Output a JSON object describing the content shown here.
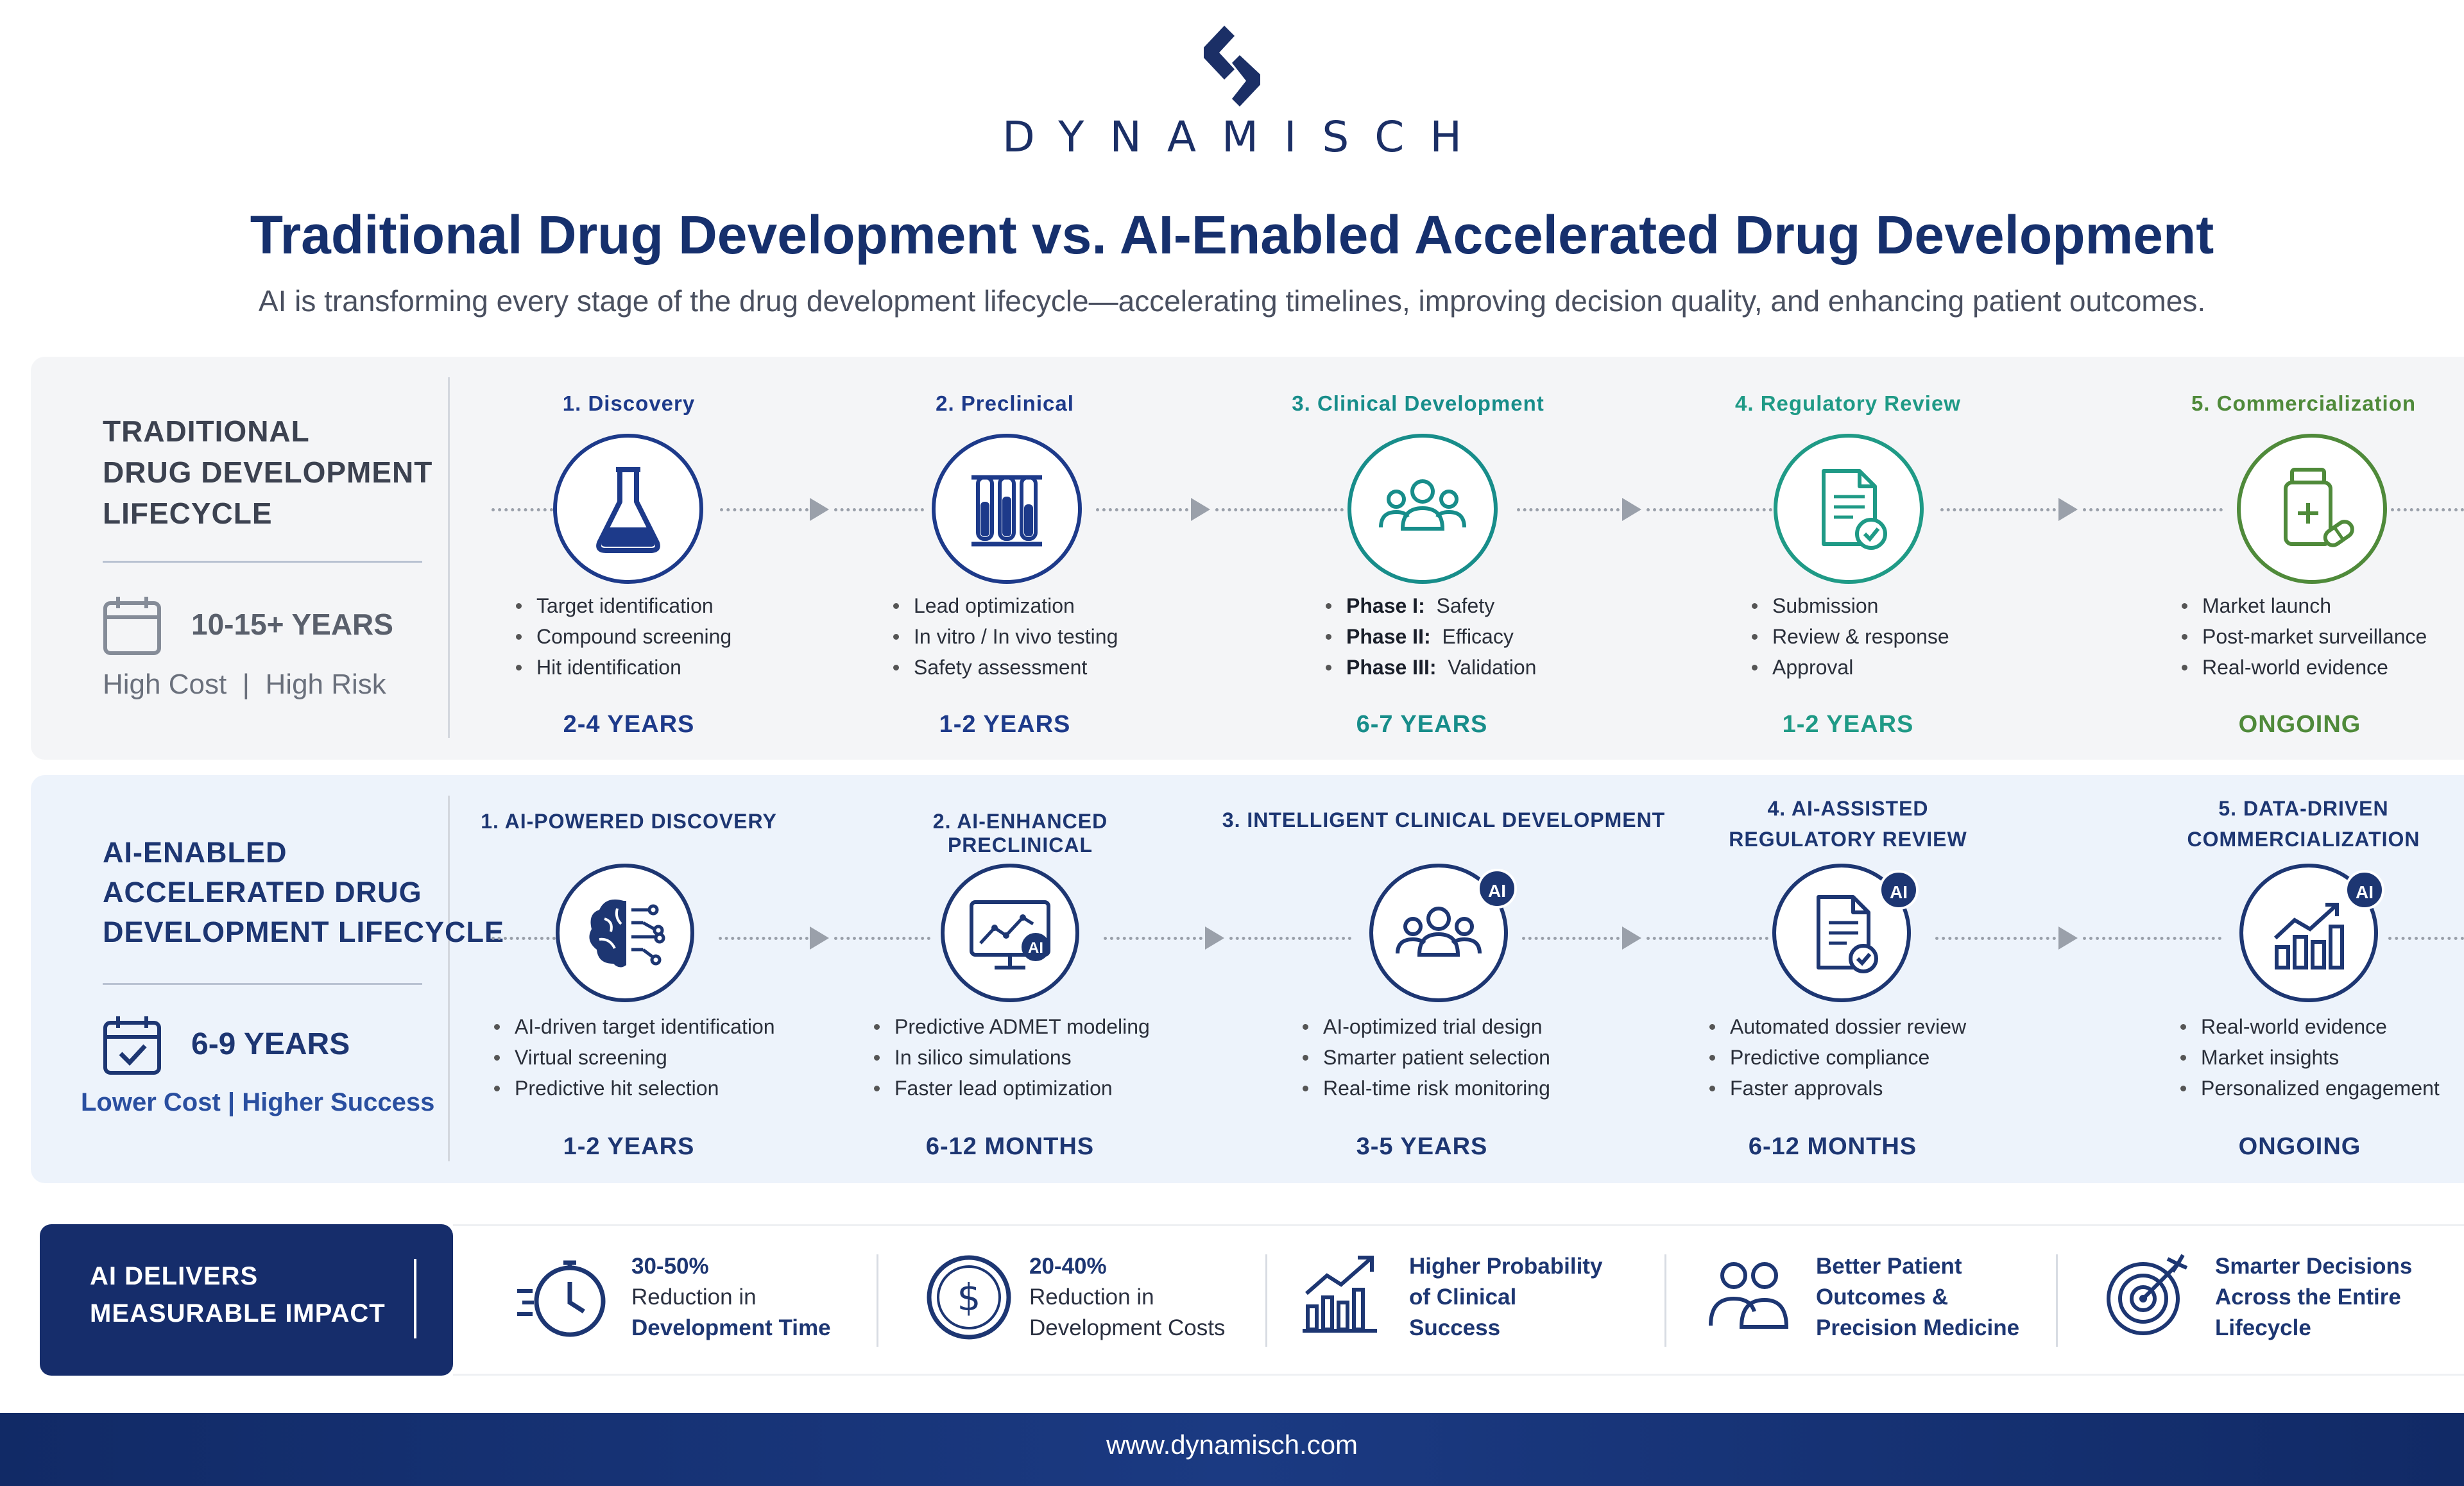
{
  "brand": {
    "name": "DYNAMISCH"
  },
  "header": {
    "title": "Traditional Drug Development vs. AI-Enabled Accelerated Drug Development",
    "subtitle": "AI is transforming every stage of the drug development lifecycle—accelerating timelines, improving decision quality, and enhancing patient outcomes."
  },
  "traditional": {
    "title_lines": [
      "TRADITIONAL",
      "DRUG DEVELOPMENT",
      "LIFECYCLE"
    ],
    "duration": "10-15+ YEARS",
    "cost_label": "High Cost",
    "separator": "|",
    "risk_label": "High Risk",
    "stages": [
      {
        "title": "1. Discovery",
        "icon": "flask-icon",
        "color": "#1d3a8a",
        "bullets": [
          "Target identification",
          "Compound screening",
          "Hit identification"
        ],
        "duration": "2-4 YEARS"
      },
      {
        "title": "2. Preclinical",
        "icon": "test-tubes-icon",
        "color": "#1d3a8a",
        "bullets": [
          "Lead optimization",
          "In vitro / In vivo testing",
          "Safety assessment"
        ],
        "duration": "1-2 YEARS"
      },
      {
        "title": "3. Clinical Development",
        "icon": "people-group-icon",
        "color": "#178d8a",
        "bullets_rich": [
          [
            "Phase I:",
            "Safety"
          ],
          [
            "Phase II:",
            "Efficacy"
          ],
          [
            "Phase III:",
            "Validation"
          ]
        ],
        "duration": "6-7 YEARS"
      },
      {
        "title": "4. Regulatory Review",
        "icon": "document-check-icon",
        "color": "#1f9a86",
        "bullets": [
          "Submission",
          "Review & response",
          "Approval"
        ],
        "duration": "1-2 YEARS"
      },
      {
        "title": "5. Commercialization",
        "icon": "medicine-bottle-icon",
        "color": "#4f8a3a",
        "bullets": [
          "Market launch",
          "Post-market surveillance",
          "Real-world evidence"
        ],
        "duration": "ONGOING"
      }
    ]
  },
  "ai_enabled": {
    "title_lines": [
      "AI-ENABLED",
      "ACCELERATED DRUG",
      "DEVELOPMENT LIFECYCLE"
    ],
    "duration": "6-9 YEARS",
    "cost_label": "Lower Cost",
    "separator": "|",
    "success_label": "Higher Success",
    "badge": "AI",
    "stages": [
      {
        "title_lines": [
          "1. AI-POWERED DISCOVERY"
        ],
        "icon": "brain-circuit-icon",
        "bullets": [
          "AI-driven target identification",
          "Virtual screening",
          "Predictive hit selection"
        ],
        "duration": "1-2 YEARS"
      },
      {
        "title_lines": [
          "2. AI-ENHANCED PRECLINICAL"
        ],
        "icon": "monitor-chart-icon",
        "bullets": [
          "Predictive ADMET modeling",
          "In silico simulations",
          "Faster lead optimization"
        ],
        "duration": "6-12 MONTHS"
      },
      {
        "title_lines": [
          "3. INTELLIGENT CLINICAL DEVELOPMENT"
        ],
        "icon": "people-group-icon",
        "bullets": [
          "AI-optimized trial design",
          "Smarter patient selection",
          "Real-time risk monitoring"
        ],
        "duration": "3-5 YEARS"
      },
      {
        "title_lines": [
          "4. AI-ASSISTED",
          "REGULATORY REVIEW"
        ],
        "icon": "document-check-icon",
        "bullets": [
          "Automated dossier review",
          "Predictive compliance",
          "Faster approvals"
        ],
        "duration": "6-12 MONTHS"
      },
      {
        "title_lines": [
          "5. DATA-DRIVEN",
          "COMMERCIALIZATION"
        ],
        "icon": "bar-chart-growth-icon",
        "bullets": [
          "Real-world evidence",
          "Market insights",
          "Personalized engagement"
        ],
        "duration": "ONGOING"
      }
    ]
  },
  "impact": {
    "label_lines": [
      "AI DELIVERS",
      "MEASURABLE IMPACT"
    ],
    "items": [
      {
        "icon": "stopwatch-icon",
        "lines": [
          "30-50%",
          "Reduction in",
          "Development Time"
        ]
      },
      {
        "icon": "dollar-coin-icon",
        "lines": [
          "20-40%",
          "Reduction in",
          "Development Costs"
        ]
      },
      {
        "icon": "growth-chart-icon",
        "lines": [
          "Higher Probability",
          "of Clinical",
          "Success"
        ]
      },
      {
        "icon": "patients-icon",
        "lines": [
          "Better Patient",
          "Outcomes &",
          "Precision Medicine"
        ]
      },
      {
        "icon": "target-icon",
        "lines": [
          "Smarter Decisions",
          "Across the Entire",
          "Lifecycle"
        ]
      }
    ]
  },
  "footer": {
    "url": "www.dynamisch.com"
  },
  "colors": {
    "navy": "#1b2f66",
    "teal": "#178d8a",
    "green": "#4f8a3a",
    "ai_panel": "#edf3fb",
    "trad_panel": "#f4f5f7"
  }
}
